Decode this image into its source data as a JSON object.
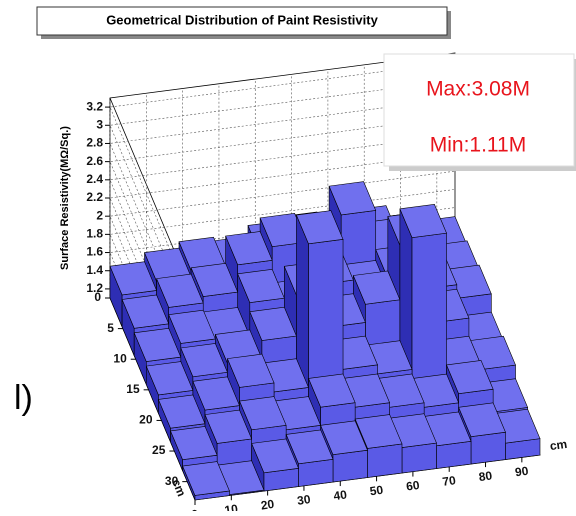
{
  "chart_data": {
    "type": "bar3d",
    "title": "Geometrical Distribution of Paint Resistivity",
    "zlabel": "Surface Resistivity(MΩ/Sq.)",
    "xlabel": "cm",
    "ylabel": "cm",
    "side_text": "l)",
    "annotations": [
      "Max:3.08M",
      "Min:1.11M"
    ],
    "color": "#5a5ae6",
    "x_edges": [
      0,
      9.5,
      19,
      28.5,
      38,
      47.5,
      57,
      66.5,
      76,
      85.5,
      95
    ],
    "y_edges": [
      0,
      4.7,
      9.4,
      14.1,
      18.8,
      23.5,
      28.2,
      33
    ],
    "values": [
      [
        1.45,
        1.55,
        1.62,
        1.58,
        1.7,
        1.75,
        1.68,
        1.72,
        1.6,
        1.5
      ],
      [
        1.4,
        1.58,
        1.65,
        1.95,
        2.1,
        2.05,
        2.35,
        1.9,
        1.85,
        1.55
      ],
      [
        1.35,
        1.5,
        1.48,
        1.85,
        1.7,
        1.95,
        1.8,
        1.92,
        1.75,
        1.6
      ],
      [
        1.3,
        1.45,
        1.55,
        1.75,
        2.2,
        1.8,
        2.0,
        2.6,
        1.7,
        1.4
      ],
      [
        1.25,
        1.4,
        1.6,
        1.5,
        3.08,
        1.65,
        1.55,
        3.0,
        1.5,
        1.45
      ],
      [
        1.22,
        1.35,
        1.45,
        1.4,
        1.6,
        1.55,
        1.5,
        1.45,
        1.55,
        1.3
      ],
      [
        1.15,
        1.11,
        1.3,
        1.35,
        1.4,
        1.42,
        1.38,
        1.35,
        1.4,
        1.28
      ]
    ],
    "xlim": [
      0,
      95
    ],
    "ylim": [
      0,
      33
    ],
    "zlim": [
      1.1,
      3.3
    ],
    "xticks": [
      0,
      10,
      20,
      30,
      40,
      50,
      60,
      70,
      80,
      90
    ],
    "yticks": [
      0,
      5,
      10,
      15,
      20,
      25,
      30
    ],
    "zticks": [
      1.2,
      1.4,
      1.6,
      1.8,
      2,
      2.2,
      2.4,
      2.6,
      2.8,
      3,
      3.2
    ],
    "grid": true
  }
}
